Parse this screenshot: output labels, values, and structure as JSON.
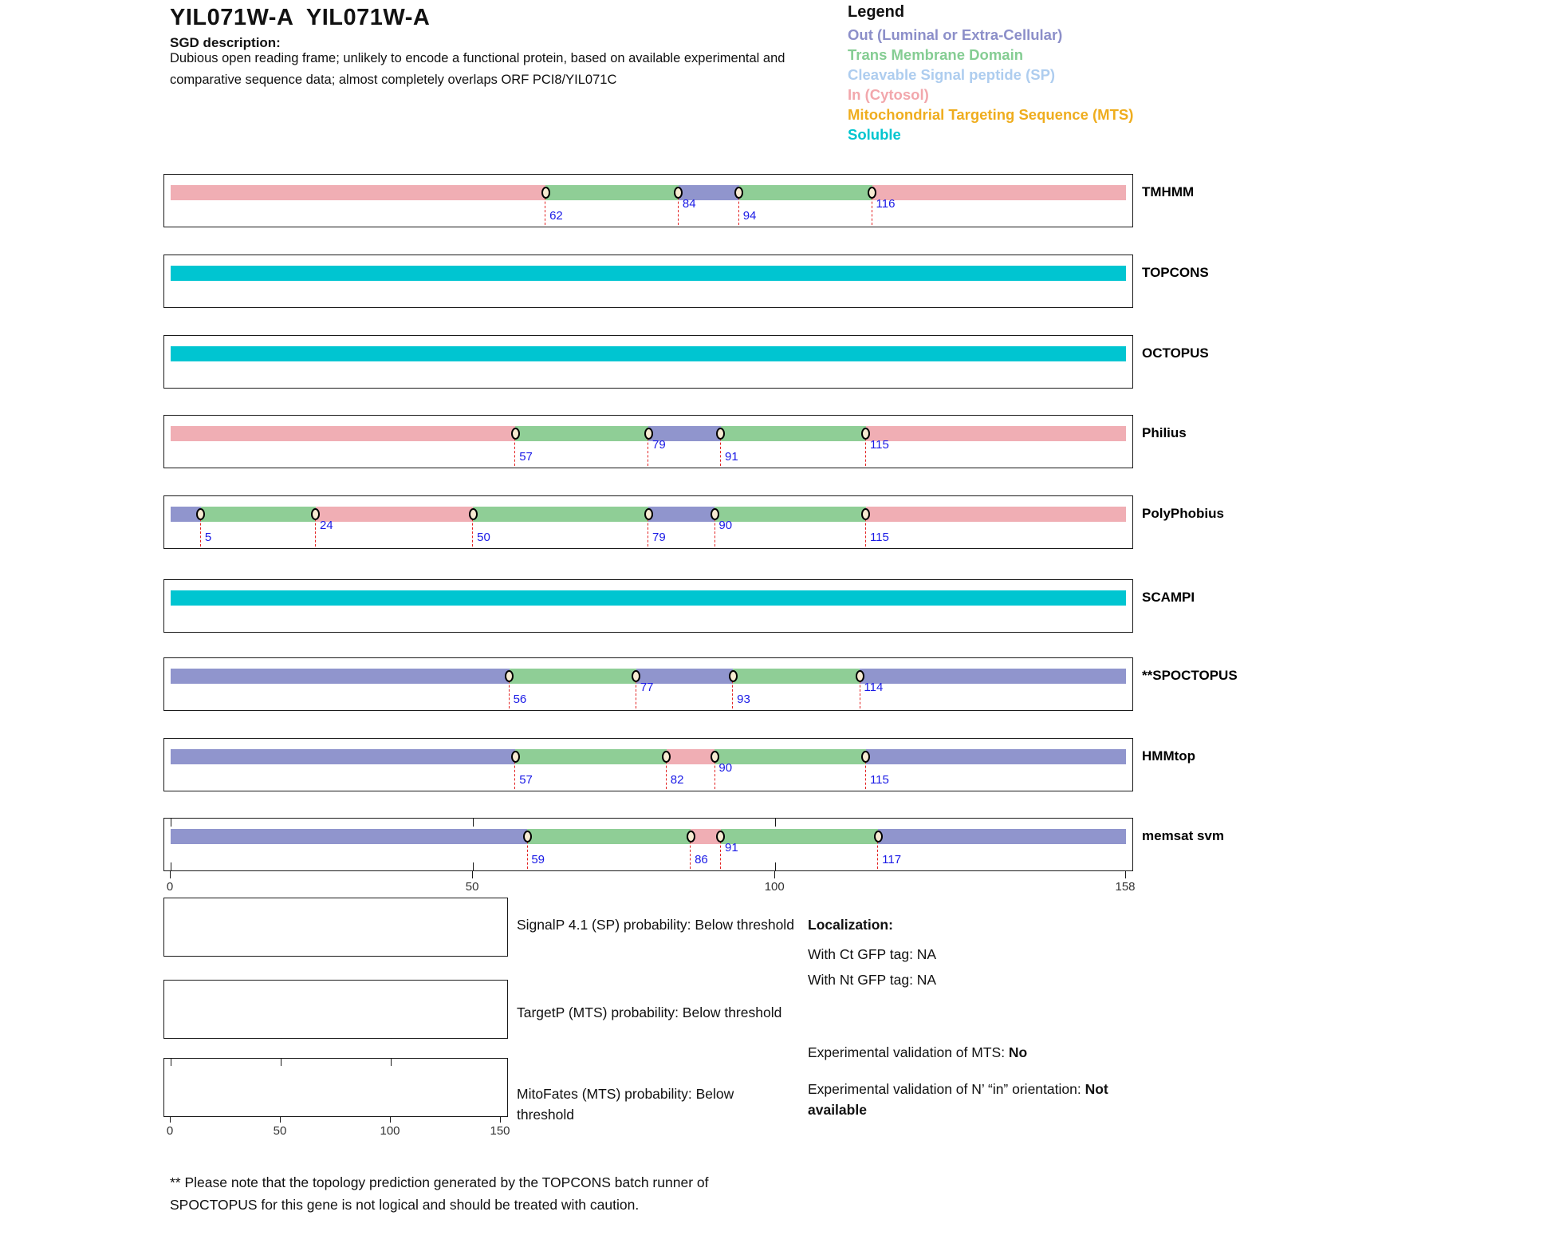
{
  "header": {
    "title": "YIL071W-A  YIL071W-A",
    "sgd_label": "SGD description:",
    "description_line1": "Dubious open reading frame; unlikely to encode a functional protein, based on available experimental and",
    "description_line2": "comparative sequence data; almost completely overlaps ORF PCI8/YIL071C"
  },
  "legend": {
    "title": "Legend",
    "items": [
      {
        "key": "out",
        "label": "Out (Luminal or Extra-Cellular)",
        "color": "#8C8FC9"
      },
      {
        "key": "tm",
        "label": "Trans Membrane Domain",
        "color": "#85CD93"
      },
      {
        "key": "sp",
        "label": "Cleavable Signal peptide (SP)",
        "color": "#AECDEF"
      },
      {
        "key": "in",
        "label": "In (Cytosol)",
        "color": "#F2A7AC"
      },
      {
        "key": "mts",
        "label": "Mitochondrial Targeting Sequence (MTS)",
        "color": "#EFAD1E"
      },
      {
        "key": "soluble",
        "label": "Soluble",
        "color": "#00C5CF"
      }
    ]
  },
  "chart_data": {
    "type": "topology-tracks",
    "sequence_length": 158,
    "axis_ticks": [
      0,
      50,
      100,
      158
    ],
    "region_colors": {
      "in": "#F0AEB4",
      "tm": "#8FCE96",
      "out": "#9095CD",
      "soluble": "#00C5D1"
    },
    "tracks": [
      {
        "name": "TMHMM",
        "segments": [
          {
            "start": 0,
            "end": 62,
            "type": "in"
          },
          {
            "start": 62,
            "end": 84,
            "type": "tm"
          },
          {
            "start": 84,
            "end": 94,
            "type": "out"
          },
          {
            "start": 94,
            "end": 116,
            "type": "tm"
          },
          {
            "start": 116,
            "end": 158,
            "type": "in"
          }
        ],
        "boundaries": [
          {
            "pos": 62,
            "lane": "low"
          },
          {
            "pos": 84,
            "lane": "high"
          },
          {
            "pos": 94,
            "lane": "low"
          },
          {
            "pos": 116,
            "lane": "high"
          }
        ]
      },
      {
        "name": "TOPCONS",
        "segments": [
          {
            "start": 0,
            "end": 158,
            "type": "soluble"
          }
        ],
        "boundaries": []
      },
      {
        "name": "OCTOPUS",
        "segments": [
          {
            "start": 0,
            "end": 158,
            "type": "soluble"
          }
        ],
        "boundaries": []
      },
      {
        "name": "Philius",
        "segments": [
          {
            "start": 0,
            "end": 57,
            "type": "in"
          },
          {
            "start": 57,
            "end": 79,
            "type": "tm"
          },
          {
            "start": 79,
            "end": 91,
            "type": "out"
          },
          {
            "start": 91,
            "end": 115,
            "type": "tm"
          },
          {
            "start": 115,
            "end": 158,
            "type": "in"
          }
        ],
        "boundaries": [
          {
            "pos": 57,
            "lane": "low"
          },
          {
            "pos": 79,
            "lane": "high"
          },
          {
            "pos": 91,
            "lane": "low"
          },
          {
            "pos": 115,
            "lane": "high"
          }
        ]
      },
      {
        "name": "PolyPhobius",
        "segments": [
          {
            "start": 0,
            "end": 5,
            "type": "out"
          },
          {
            "start": 5,
            "end": 24,
            "type": "tm"
          },
          {
            "start": 24,
            "end": 50,
            "type": "in"
          },
          {
            "start": 50,
            "end": 79,
            "type": "tm"
          },
          {
            "start": 79,
            "end": 90,
            "type": "out"
          },
          {
            "start": 90,
            "end": 115,
            "type": "tm"
          },
          {
            "start": 115,
            "end": 158,
            "type": "in"
          }
        ],
        "boundaries": [
          {
            "pos": 5,
            "lane": "low"
          },
          {
            "pos": 24,
            "lane": "high"
          },
          {
            "pos": 50,
            "lane": "low"
          },
          {
            "pos": 79,
            "lane": "low"
          },
          {
            "pos": 90,
            "lane": "high"
          },
          {
            "pos": 115,
            "lane": "low"
          }
        ]
      },
      {
        "name": "SCAMPI",
        "segments": [
          {
            "start": 0,
            "end": 158,
            "type": "soluble"
          }
        ],
        "boundaries": []
      },
      {
        "name": "**SPOCTOPUS",
        "segments": [
          {
            "start": 0,
            "end": 56,
            "type": "out"
          },
          {
            "start": 56,
            "end": 77,
            "type": "tm"
          },
          {
            "start": 77,
            "end": 93,
            "type": "out"
          },
          {
            "start": 93,
            "end": 114,
            "type": "tm"
          },
          {
            "start": 114,
            "end": 158,
            "type": "out"
          }
        ],
        "boundaries": [
          {
            "pos": 56,
            "lane": "low"
          },
          {
            "pos": 77,
            "lane": "high"
          },
          {
            "pos": 93,
            "lane": "low"
          },
          {
            "pos": 114,
            "lane": "high"
          }
        ]
      },
      {
        "name": "HMMtop",
        "segments": [
          {
            "start": 0,
            "end": 57,
            "type": "out"
          },
          {
            "start": 57,
            "end": 82,
            "type": "tm"
          },
          {
            "start": 82,
            "end": 90,
            "type": "in"
          },
          {
            "start": 90,
            "end": 115,
            "type": "tm"
          },
          {
            "start": 115,
            "end": 158,
            "type": "out"
          }
        ],
        "boundaries": [
          {
            "pos": 57,
            "lane": "low"
          },
          {
            "pos": 82,
            "lane": "low"
          },
          {
            "pos": 90,
            "lane": "high"
          },
          {
            "pos": 115,
            "lane": "low"
          }
        ]
      },
      {
        "name": "memsat svm",
        "has_ticks": true,
        "segments": [
          {
            "start": 0,
            "end": 59,
            "type": "out"
          },
          {
            "start": 59,
            "end": 86,
            "type": "tm"
          },
          {
            "start": 86,
            "end": 91,
            "type": "in"
          },
          {
            "start": 91,
            "end": 117,
            "type": "tm"
          },
          {
            "start": 117,
            "end": 158,
            "type": "out"
          }
        ],
        "boundaries": [
          {
            "pos": 59,
            "lane": "low"
          },
          {
            "pos": 86,
            "lane": "low"
          },
          {
            "pos": 91,
            "lane": "high"
          },
          {
            "pos": 117,
            "lane": "low"
          }
        ]
      }
    ],
    "probability_plots": [
      {
        "name": "SignalP",
        "label_lines": [
          "SignalP 4.1 (SP) probability: Below threshold"
        ],
        "axis_ticks": null,
        "curve": "none"
      },
      {
        "name": "TargetP",
        "label_lines": [
          "TargetP (MTS) probability: Below threshold"
        ],
        "axis_ticks": null,
        "curve": "none"
      },
      {
        "name": "MitoFates",
        "label_lines": [
          "MitoFates (MTS) probability: Below",
          "threshold"
        ],
        "axis_ticks": [
          0,
          50,
          100,
          150
        ],
        "axis_max": 150,
        "curve": "none"
      }
    ]
  },
  "localization": {
    "title": "Localization:",
    "ct_line": "With Ct GFP tag: NA",
    "nt_line": "With Nt GFP tag: NA",
    "mts_label": "Experimental validation of MTS: ",
    "mts_value": "No",
    "orientation_label": "Experimental validation of N’ “in” orientation: ",
    "orientation_value": "Not available"
  },
  "footnote": {
    "line1": "** Please note that the topology prediction generated by the TOPCONS batch runner of",
    "line2": "SPOCTOPUS for this gene is not logical and should be treated with caution."
  }
}
